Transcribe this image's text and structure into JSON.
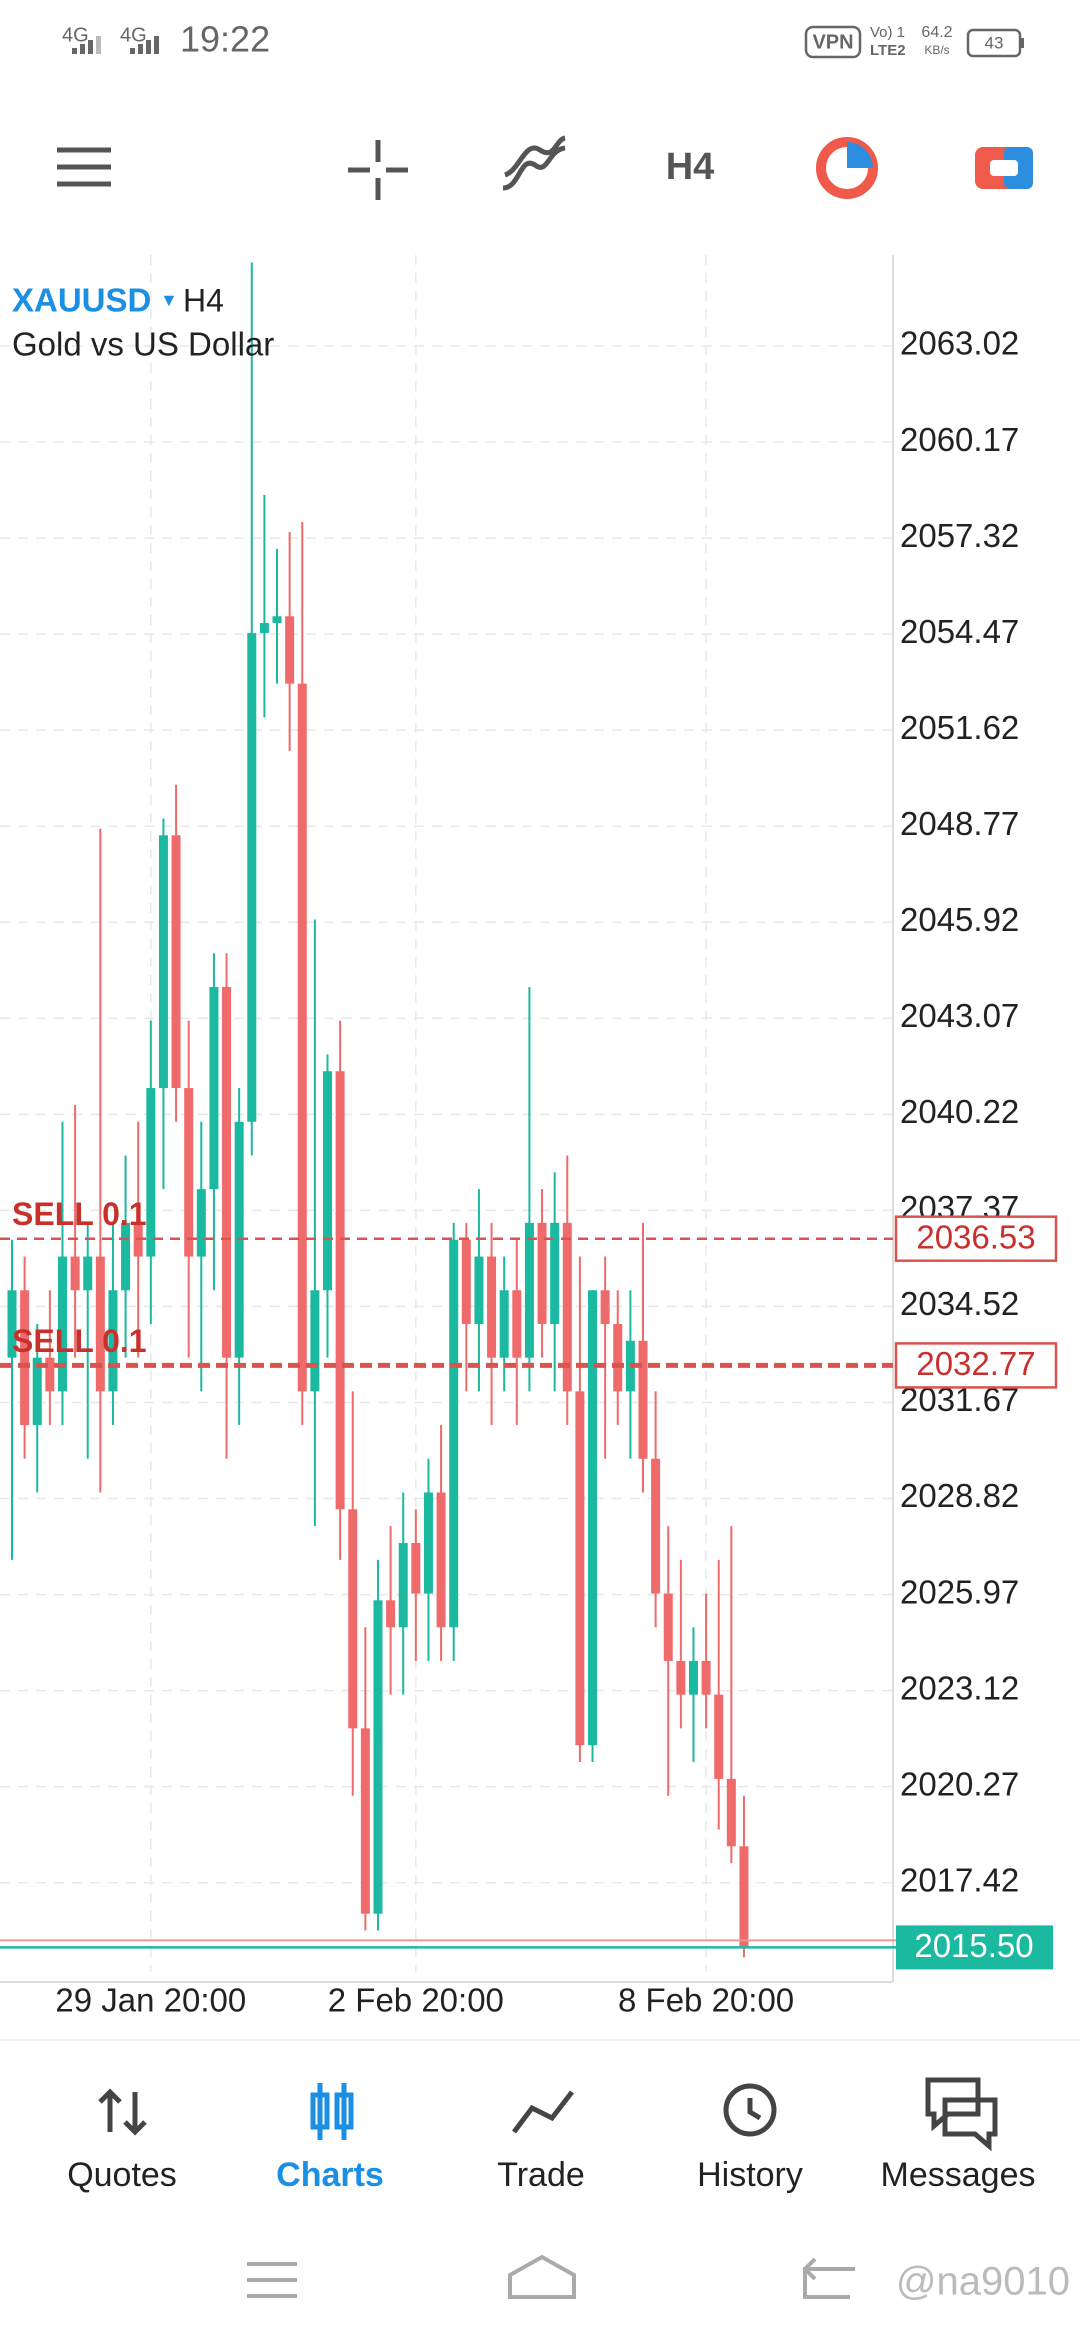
{
  "status_bar": {
    "network1": "4G",
    "network2": "4G",
    "time": "19:22",
    "vpn": "VPN",
    "volte": "Vo) 1",
    "lte": "LTE2",
    "speed": "64.2",
    "speed_unit": "KB/s",
    "battery": "43"
  },
  "toolbar": {
    "timeframe": "H4"
  },
  "chart_data": {
    "type": "candlestick",
    "symbol": "XAUUSD",
    "timeframe": "H4",
    "description": "Gold vs US Dollar",
    "up_color": "#1bb9a0",
    "down_color": "#ef6b6b",
    "x": [
      null,
      null,
      null,
      null,
      null,
      null,
      null,
      null,
      null,
      null,
      null,
      "29 Jan 20:00",
      null,
      null,
      null,
      null,
      null,
      null,
      null,
      null,
      null,
      null,
      null,
      null,
      null,
      null,
      null,
      null,
      null,
      null,
      null,
      null,
      "2 Feb 20:00",
      null,
      null,
      null,
      null,
      null,
      null,
      null,
      null,
      null,
      null,
      null,
      null,
      null,
      null,
      null,
      null,
      null,
      null,
      null,
      null,
      null,
      null,
      "8 Feb 20:00",
      null,
      null,
      null
    ],
    "open": [
      2033,
      2035,
      2031,
      2033,
      2032,
      2036,
      2035,
      2036,
      2032,
      2035,
      2037,
      2036,
      2041,
      2048.5,
      2041,
      2036,
      2038,
      2044,
      2033,
      2040,
      2054.5,
      2054.8,
      2055,
      2053,
      2032,
      2035,
      2041.5,
      2028.5,
      2022,
      2016.5,
      2025.8,
      2025,
      2027.5,
      2026,
      2029,
      2025,
      2036.5,
      2034,
      2036,
      2033,
      2035,
      2033,
      2037,
      2034,
      2037,
      2032,
      2021.5,
      2035,
      2034,
      2032,
      2033.5,
      2030,
      2026,
      2024,
      2023,
      2024,
      2023,
      2020.5,
      2018.5
    ],
    "high": [
      2036.5,
      2036,
      2034,
      2035,
      2040,
      2040.5,
      2037,
      2048.7,
      2037,
      2039,
      2040,
      2043,
      2049,
      2050,
      2043,
      2040,
      2045,
      2045,
      2041,
      2065.5,
      2058.6,
      2057,
      2057.5,
      2057.8,
      2046,
      2042,
      2043,
      2032,
      2025,
      2027,
      2028,
      2029,
      2028.5,
      2030,
      2031,
      2037,
      2037,
      2038,
      2037,
      2036,
      2036.5,
      2044,
      2038,
      2038.5,
      2039,
      2036,
      2035,
      2036,
      2035,
      2035,
      2037,
      2032,
      2028,
      2027,
      2025,
      2026,
      2027,
      2028,
      2020
    ],
    "low": [
      2027,
      2030,
      2029,
      2031,
      2031,
      2033,
      2030,
      2029,
      2031,
      2033,
      2033,
      2034,
      2038,
      2040,
      2033,
      2032,
      2035,
      2030,
      2031,
      2039,
      2052,
      2053,
      2051,
      2031,
      2028,
      2033,
      2027,
      2020,
      2016,
      2016,
      2023,
      2023,
      2024,
      2024,
      2024,
      2024,
      2032,
      2032,
      2031,
      2032,
      2031,
      2032,
      2033,
      2032,
      2031,
      2021,
      2021,
      2030,
      2031,
      2030,
      2029,
      2025,
      2020,
      2022,
      2021,
      2022,
      2019,
      2018,
      2015.2
    ],
    "close": [
      2035,
      2031,
      2033,
      2032,
      2036,
      2035,
      2036,
      2032,
      2035,
      2037,
      2036,
      2041,
      2048.5,
      2041,
      2036,
      2038,
      2044,
      2033,
      2040,
      2054.5,
      2054.8,
      2055,
      2053,
      2032,
      2035,
      2041.5,
      2028.5,
      2022,
      2016.5,
      2025.8,
      2025,
      2027.5,
      2026,
      2029,
      2025,
      2036.5,
      2034,
      2036,
      2033,
      2035,
      2033,
      2037,
      2034,
      2037,
      2032,
      2021.5,
      2035,
      2034,
      2032,
      2033.5,
      2030,
      2026,
      2024,
      2023,
      2024,
      2023,
      2020.5,
      2018.5,
      2015.5
    ],
    "ylim": [
      2014.77,
      2065.72
    ],
    "yticks": [
      2063.02,
      2060.17,
      2057.32,
      2054.47,
      2051.62,
      2048.77,
      2045.92,
      2043.07,
      2040.22,
      2037.37,
      2034.52,
      2031.67,
      2028.82,
      2025.97,
      2023.12,
      2020.27,
      2017.42
    ],
    "grid": true,
    "order_lines": [
      {
        "label": "SELL 0.1",
        "value": 2036.53,
        "color": "#d9534f"
      },
      {
        "label": "SELL 0.1",
        "value": 2032.77,
        "color": "#d9534f"
      }
    ],
    "current_price": {
      "value": 2015.5,
      "label": "2015.50",
      "color": "#1bb9a0"
    }
  },
  "nav": {
    "items": [
      "Quotes",
      "Charts",
      "Trade",
      "History",
      "Messages"
    ],
    "active": 1
  },
  "watermark": "@na9010"
}
